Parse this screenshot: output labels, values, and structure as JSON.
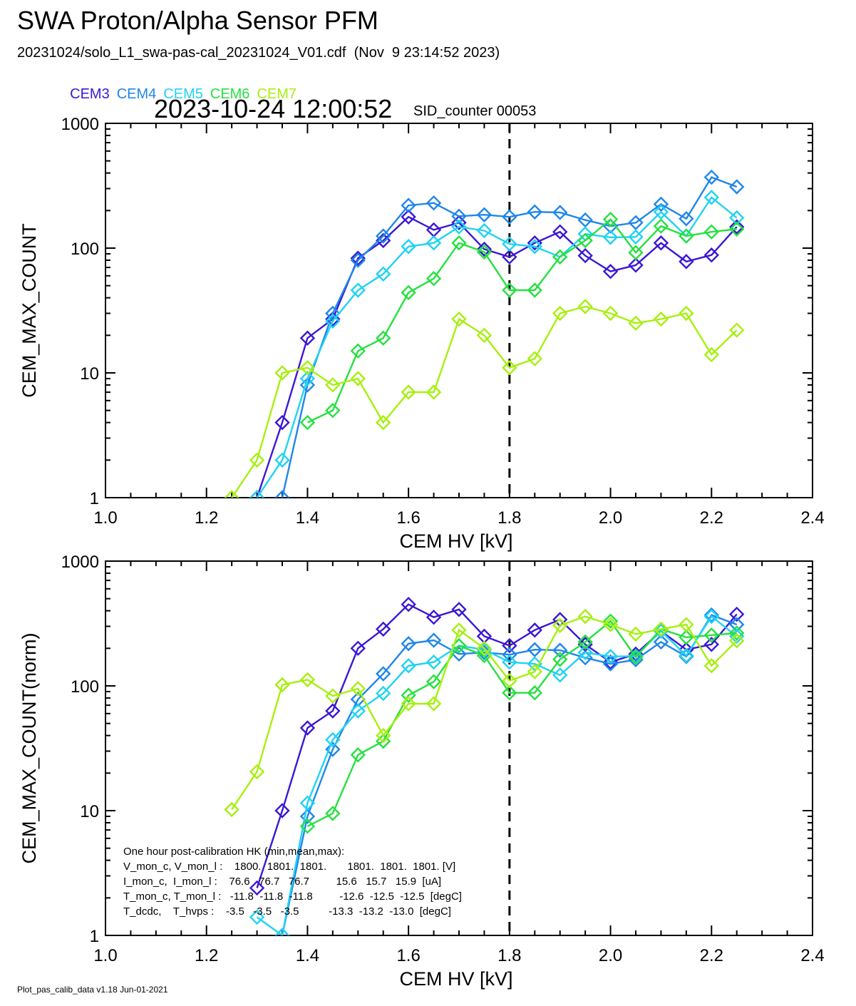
{
  "header": {
    "title": "SWA Proton/Alpha Sensor PFM",
    "subtitle": "20231024/solo_L1_swa-pas-cal_20231024_V01.cdf  (Nov  9 23:14:52 2023)",
    "timestamp": "2023-10-24 12:00:52",
    "sid_counter": "SID_counter 00053"
  },
  "legend": [
    {
      "name": "CEM3",
      "color": "#3b17d4"
    },
    {
      "name": "CEM4",
      "color": "#1f86ea"
    },
    {
      "name": "CEM5",
      "color": "#20d2f2"
    },
    {
      "name": "CEM6",
      "color": "#26e040"
    },
    {
      "name": "CEM7",
      "color": "#a6f00e"
    }
  ],
  "hk_box": {
    "heading": "One hour post-calibration HK (min,mean,max):",
    "rows": [
      "V_mon_c, V_mon_l :    1800.  1801.  1801.       1801.  1801.  1801. [V]",
      "I_mon_c,  I_mon_l :    76.6   76.7   76.7         15.6   15.7   15.9  [uA]",
      "T_mon_c, T_mon_l :   -11.8  -11.8  -11.8         -12.6  -12.5  -12.5  [degC]",
      "T_dcdc,    T_hvps :    -3.5   -3.5   -3.5          -13.3  -13.2  -13.0  [degC]"
    ]
  },
  "footer": "Plot_pas_calib_data v1.18 Jun-01-2021",
  "chart_data": [
    {
      "type": "line",
      "xlabel": "CEM HV [kV]",
      "ylabel": "CEM_MAX_COUNT",
      "xlim": [
        1.0,
        2.4
      ],
      "ylim": [
        1,
        1000
      ],
      "yscale": "log",
      "xticks": [
        "1.0",
        "1.2",
        "1.4",
        "1.6",
        "1.8",
        "2.0",
        "2.2",
        "2.4"
      ],
      "yticks": [
        "1",
        "10",
        "100",
        "1000"
      ],
      "vline": 1.8,
      "x": [
        1.25,
        1.3,
        1.35,
        1.4,
        1.45,
        1.5,
        1.55,
        1.6,
        1.65,
        1.7,
        1.75,
        1.8,
        1.85,
        1.9,
        1.95,
        2.0,
        2.05,
        2.1,
        2.15,
        2.2,
        2.25
      ],
      "series": [
        {
          "name": "CEM3",
          "values": [
            null,
            1,
            4,
            19,
            27,
            83,
            115,
            178,
            140,
            160,
            98,
            85,
            110,
            135,
            87,
            65,
            73,
            110,
            78,
            88,
            148
          ]
        },
        {
          "name": "CEM4",
          "values": [
            null,
            null,
            1,
            8,
            30,
            80,
            125,
            220,
            230,
            180,
            185,
            178,
            195,
            193,
            168,
            150,
            160,
            225,
            172,
            370,
            310
          ]
        },
        {
          "name": "CEM5",
          "values": [
            null,
            1,
            2,
            9,
            26,
            46,
            62,
            103,
            110,
            148,
            138,
            108,
            103,
            85,
            130,
            122,
            123,
            195,
            125,
            255,
            175
          ]
        },
        {
          "name": "CEM6",
          "values": [
            null,
            null,
            null,
            4,
            5,
            15,
            19,
            44,
            57,
            110,
            93,
            46,
            46,
            85,
            115,
            170,
            92,
            150,
            125,
            135,
            142
          ]
        },
        {
          "name": "CEM7",
          "values": [
            1,
            2,
            10,
            11,
            8,
            9,
            4,
            7,
            7,
            27,
            20,
            11,
            13,
            30,
            34,
            30,
            25,
            27,
            30,
            14,
            22
          ]
        }
      ]
    },
    {
      "type": "line",
      "xlabel": "CEM HV [kV]",
      "ylabel": "CEM_MAX_COUNT(norm)",
      "xlim": [
        1.0,
        2.4
      ],
      "ylim": [
        1,
        1000
      ],
      "yscale": "log",
      "xticks": [
        "1.0",
        "1.2",
        "1.4",
        "1.6",
        "1.8",
        "2.0",
        "2.2",
        "2.4"
      ],
      "yticks": [
        "1",
        "10",
        "100",
        "1000"
      ],
      "vline": 1.8,
      "x": [
        1.25,
        1.3,
        1.35,
        1.4,
        1.45,
        1.5,
        1.55,
        1.6,
        1.65,
        1.7,
        1.75,
        1.8,
        1.85,
        1.9,
        1.95,
        2.0,
        2.05,
        2.1,
        2.15,
        2.2,
        2.25
      ],
      "series": [
        {
          "name": "CEM3",
          "values": [
            null,
            2.4,
            10,
            46,
            63,
            200,
            285,
            450,
            355,
            410,
            250,
            210,
            280,
            340,
            215,
            155,
            180,
            275,
            195,
            215,
            375
          ]
        },
        {
          "name": "CEM4",
          "values": [
            null,
            null,
            1,
            9,
            31,
            78,
            125,
            218,
            232,
            180,
            185,
            178,
            195,
            193,
            168,
            150,
            162,
            225,
            172,
            370,
            310
          ]
        },
        {
          "name": "CEM5",
          "values": [
            null,
            1.4,
            1,
            11.5,
            37,
            63,
            87,
            145,
            155,
            210,
            195,
            155,
            150,
            122,
            185,
            172,
            173,
            275,
            175,
            360,
            250
          ]
        },
        {
          "name": "CEM6",
          "values": [
            null,
            null,
            null,
            7.5,
            9.5,
            28,
            36,
            84,
            108,
            210,
            175,
            88,
            88,
            163,
            225,
            330,
            170,
            285,
            245,
            255,
            265
          ]
        },
        {
          "name": "CEM7",
          "values": [
            10.2,
            20.5,
            102,
            112,
            83,
            95,
            40,
            72,
            72,
            280,
            200,
            110,
            130,
            305,
            360,
            310,
            260,
            285,
            310,
            145,
            230
          ]
        }
      ]
    }
  ]
}
